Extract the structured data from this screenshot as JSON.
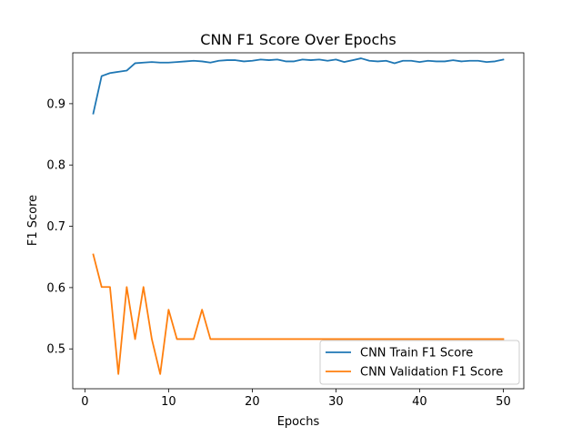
{
  "chart_data": {
    "type": "line",
    "title": "CNN F1 Score Over Epochs",
    "xlabel": "Epochs",
    "ylabel": "F1 Score",
    "xlim": [
      -1.45,
      52.45
    ],
    "ylim": [
      0.435,
      0.983
    ],
    "xticks": [
      0,
      10,
      20,
      30,
      40,
      50
    ],
    "yticks": [
      0.5,
      0.6,
      0.7,
      0.8,
      0.9
    ],
    "ytick_labels": [
      "0.5",
      "0.6",
      "0.7",
      "0.8",
      "0.9"
    ],
    "grid": false,
    "legend_position": "lower-right",
    "x": [
      1,
      2,
      3,
      4,
      5,
      6,
      7,
      8,
      9,
      10,
      11,
      12,
      13,
      14,
      15,
      16,
      17,
      18,
      19,
      20,
      21,
      22,
      23,
      24,
      25,
      26,
      27,
      28,
      29,
      30,
      31,
      32,
      33,
      34,
      35,
      36,
      37,
      38,
      39,
      40,
      41,
      42,
      43,
      44,
      45,
      46,
      47,
      48,
      49,
      50
    ],
    "series": [
      {
        "name": "CNN Train F1 Score",
        "color": "#1f77b4",
        "values": [
          0.884,
          0.945,
          0.95,
          0.952,
          0.954,
          0.966,
          0.967,
          0.968,
          0.967,
          0.967,
          0.968,
          0.969,
          0.97,
          0.969,
          0.967,
          0.97,
          0.971,
          0.971,
          0.969,
          0.97,
          0.972,
          0.971,
          0.972,
          0.969,
          0.969,
          0.972,
          0.971,
          0.972,
          0.97,
          0.972,
          0.968,
          0.971,
          0.974,
          0.97,
          0.969,
          0.97,
          0.966,
          0.97,
          0.97,
          0.968,
          0.97,
          0.969,
          0.969,
          0.971,
          0.969,
          0.97,
          0.97,
          0.968,
          0.969,
          0.972
        ]
      },
      {
        "name": "CNN Validation F1 Score",
        "color": "#ff7f0e",
        "values": [
          0.654,
          0.601,
          0.601,
          0.459,
          0.601,
          0.516,
          0.601,
          0.516,
          0.459,
          0.564,
          0.516,
          0.516,
          0.516,
          0.564,
          0.516,
          0.516,
          0.516,
          0.516,
          0.516,
          0.516,
          0.516,
          0.516,
          0.516,
          0.516,
          0.516,
          0.516,
          0.516,
          0.516,
          0.516,
          0.516,
          0.516,
          0.516,
          0.516,
          0.516,
          0.516,
          0.516,
          0.516,
          0.516,
          0.516,
          0.516,
          0.516,
          0.516,
          0.516,
          0.516,
          0.516,
          0.516,
          0.516,
          0.516,
          0.516,
          0.516
        ]
      }
    ]
  }
}
